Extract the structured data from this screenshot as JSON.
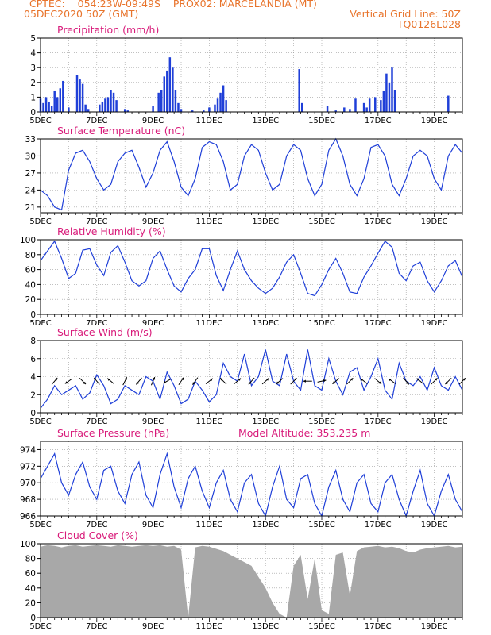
{
  "header": {
    "line1_left": "CPTEC:    054:23W-09:49S    PROX02: MARCELANDIA (MT)",
    "line2_left": "05DEC2020 50Z (GMT)",
    "line2_right": "Vertical Grid Line: 50Z",
    "line3_right": "TQ0126L028"
  },
  "colors": {
    "header": "#e8742c",
    "panel_title": "#d81b7a",
    "line": "#1f3fd8",
    "bar": "#1f3fd8",
    "cloud": "#a8a8a8",
    "grid": "#9a9a9a"
  },
  "x_tick_labels": [
    "5DEC",
    "7DEC",
    "9DEC",
    "11DEC",
    "13DEC",
    "15DEC",
    "17DEC",
    "19DEC"
  ],
  "x_axis": {
    "day_min": 5,
    "day_max": 20,
    "minor_ticks_per_day": 4
  },
  "chart_data": [
    {
      "type": "bar",
      "title": "Precipitation (mm/h)",
      "ylim": [
        0,
        5
      ],
      "yticks": [
        "0",
        "1",
        "2",
        "3",
        "4",
        "5"
      ],
      "x": [
        5.0,
        5.1,
        5.2,
        5.3,
        5.4,
        5.5,
        5.6,
        5.7,
        5.8,
        6.0,
        6.3,
        6.4,
        6.5,
        6.6,
        6.7,
        7.1,
        7.2,
        7.3,
        7.4,
        7.5,
        7.6,
        7.7,
        8.0,
        8.1,
        9.0,
        9.2,
        9.3,
        9.4,
        9.5,
        9.6,
        9.7,
        9.8,
        9.9,
        10.0,
        10.4,
        10.8,
        11.0,
        11.2,
        11.3,
        11.4,
        11.5,
        11.6,
        14.2,
        14.3,
        15.2,
        15.5,
        15.8,
        16.0,
        16.2,
        16.5,
        16.6,
        16.7,
        16.9,
        17.1,
        17.2,
        17.3,
        17.4,
        17.5,
        17.6,
        19.5
      ],
      "values": [
        0.9,
        0.6,
        1.0,
        0.7,
        0.4,
        1.4,
        1.0,
        1.6,
        2.1,
        0.3,
        2.5,
        2.2,
        1.9,
        0.5,
        0.2,
        0.5,
        0.7,
        0.9,
        1.0,
        1.5,
        1.3,
        0.8,
        0.2,
        0.1,
        0.4,
        1.3,
        1.5,
        2.4,
        2.8,
        3.7,
        3.0,
        1.5,
        0.6,
        0.2,
        0.1,
        0.1,
        0.3,
        0.5,
        0.9,
        1.3,
        1.8,
        0.8,
        2.9,
        0.6,
        0.4,
        0.1,
        0.3,
        0.2,
        0.9,
        0.6,
        0.3,
        0.9,
        1.0,
        0.8,
        1.4,
        2.6,
        2.0,
        3.0,
        1.5,
        1.1
      ]
    },
    {
      "type": "line",
      "title": "Surface Temperature (nC)",
      "ylim": [
        20,
        33
      ],
      "yticks": [
        "21",
        "24",
        "27",
        "30",
        "33"
      ],
      "x": [
        5.0,
        5.25,
        5.5,
        5.75,
        6.0,
        6.25,
        6.5,
        6.75,
        7.0,
        7.25,
        7.5,
        7.75,
        8.0,
        8.25,
        8.5,
        8.75,
        9.0,
        9.25,
        9.5,
        9.75,
        10.0,
        10.25,
        10.5,
        10.75,
        11.0,
        11.25,
        11.5,
        11.75,
        12.0,
        12.25,
        12.5,
        12.75,
        13.0,
        13.25,
        13.5,
        13.75,
        14.0,
        14.25,
        14.5,
        14.75,
        15.0,
        15.25,
        15.5,
        15.75,
        16.0,
        16.25,
        16.5,
        16.75,
        17.0,
        17.25,
        17.5,
        17.75,
        18.0,
        18.25,
        18.5,
        18.75,
        19.0,
        19.25,
        19.5,
        19.75,
        20.0
      ],
      "values": [
        24,
        23,
        21,
        20.5,
        27.5,
        30.5,
        31,
        29,
        26,
        24,
        25,
        29,
        30.5,
        31,
        28,
        24.5,
        27,
        31,
        32.5,
        29,
        24.5,
        23,
        26,
        31.5,
        32.5,
        32,
        29,
        24,
        25,
        30,
        32,
        31,
        27,
        24,
        25,
        30,
        32,
        31,
        26,
        23,
        25,
        31,
        33,
        30,
        25,
        23,
        26,
        31.5,
        32,
        30,
        25,
        23,
        26,
        30,
        31,
        30,
        26,
        24,
        30,
        32,
        30.5
      ]
    },
    {
      "type": "line",
      "title": "Relative Humidity (%)",
      "ylim": [
        0,
        100
      ],
      "yticks": [
        "0",
        "20",
        "40",
        "60",
        "80",
        "100"
      ],
      "x": [
        5.0,
        5.25,
        5.5,
        5.75,
        6.0,
        6.25,
        6.5,
        6.75,
        7.0,
        7.25,
        7.5,
        7.75,
        8.0,
        8.25,
        8.5,
        8.75,
        9.0,
        9.25,
        9.5,
        9.75,
        10.0,
        10.25,
        10.5,
        10.75,
        11.0,
        11.25,
        11.5,
        11.75,
        12.0,
        12.25,
        12.5,
        12.75,
        13.0,
        13.25,
        13.5,
        13.75,
        14.0,
        14.25,
        14.5,
        14.75,
        15.0,
        15.25,
        15.5,
        15.75,
        16.0,
        16.25,
        16.5,
        16.75,
        17.0,
        17.25,
        17.5,
        17.75,
        18.0,
        18.25,
        18.5,
        18.75,
        19.0,
        19.25,
        19.5,
        19.75,
        20.0
      ],
      "values": [
        72,
        85,
        98,
        75,
        48,
        55,
        86,
        88,
        66,
        52,
        83,
        92,
        70,
        45,
        38,
        45,
        75,
        85,
        60,
        38,
        30,
        48,
        60,
        88,
        88,
        52,
        32,
        60,
        85,
        60,
        45,
        35,
        28,
        35,
        50,
        70,
        80,
        55,
        28,
        25,
        40,
        60,
        75,
        55,
        30,
        28,
        50,
        65,
        82,
        98,
        90,
        55,
        45,
        65,
        70,
        45,
        30,
        45,
        65,
        72,
        50
      ]
    },
    {
      "type": "line",
      "title": "Surface Wind (m/s)",
      "ylim": [
        0,
        8
      ],
      "yticks": [
        "0",
        "2",
        "4",
        "6",
        "8"
      ],
      "x": [
        5.0,
        5.25,
        5.5,
        5.75,
        6.0,
        6.25,
        6.5,
        6.75,
        7.0,
        7.25,
        7.5,
        7.75,
        8.0,
        8.25,
        8.5,
        8.75,
        9.0,
        9.25,
        9.5,
        9.75,
        10.0,
        10.25,
        10.5,
        10.75,
        11.0,
        11.25,
        11.5,
        11.75,
        12.0,
        12.25,
        12.5,
        12.75,
        13.0,
        13.25,
        13.5,
        13.75,
        14.0,
        14.25,
        14.5,
        14.75,
        15.0,
        15.25,
        15.5,
        15.75,
        16.0,
        16.25,
        16.5,
        16.75,
        17.0,
        17.25,
        17.5,
        17.75,
        18.0,
        18.25,
        18.5,
        18.75,
        19.0,
        19.25,
        19.5,
        19.75,
        20.0
      ],
      "values": [
        0.5,
        1.5,
        3.0,
        2.0,
        2.5,
        3.0,
        1.5,
        2.2,
        4.2,
        3.0,
        1.0,
        1.5,
        3.0,
        2.5,
        2.0,
        4.0,
        3.5,
        1.5,
        4.5,
        3.0,
        1.0,
        1.5,
        3.5,
        2.5,
        1.2,
        2.0,
        5.5,
        4.0,
        3.5,
        6.5,
        3.0,
        4.0,
        7.0,
        3.5,
        3.0,
        6.5,
        3.5,
        2.5,
        7.0,
        3.0,
        2.5,
        6.0,
        3.5,
        2.0,
        4.5,
        5.0,
        2.5,
        4.0,
        6.0,
        2.5,
        1.5,
        5.5,
        3.5,
        3.0,
        4.0,
        2.5,
        5.0,
        3.0,
        2.5,
        4.0,
        2.5
      ],
      "vectors": {
        "x": [
          5.5,
          6.0,
          6.5,
          7.0,
          7.5,
          8.0,
          8.5,
          9.0,
          9.5,
          10.0,
          10.5,
          11.0,
          11.5,
          12.0,
          12.5,
          13.0,
          13.5,
          14.0,
          14.5,
          15.0,
          15.5,
          16.0,
          16.5,
          17.0,
          17.5,
          18.0,
          18.5,
          19.0,
          19.5,
          20.0
        ],
        "y": [
          3.5,
          3.5,
          3.5,
          3.5,
          3.5,
          3.5,
          3.5,
          3.5,
          3.5,
          3.5,
          3.5,
          3.5,
          3.5,
          3.5,
          3.5,
          3.5,
          3.5,
          3.5,
          3.5,
          3.5,
          3.5,
          3.5,
          3.5,
          3.5,
          3.5,
          3.5,
          3.5,
          3.5,
          3.5,
          3.5
        ],
        "u": [
          0.5,
          -0.7,
          0.6,
          -0.5,
          -0.6,
          0.3,
          -0.5,
          0.3,
          -0.7,
          0.4,
          -0.5,
          0.5,
          -0.6,
          0.6,
          -0.7,
          1.0,
          -0.8,
          0.8,
          -0.9,
          0.9,
          -0.7,
          0.6,
          -0.5,
          0.7,
          -0.8,
          0.6,
          -0.7,
          0.8,
          -0.6,
          0.5
        ],
        "v": [
          0.6,
          -0.5,
          -0.6,
          0.6,
          0.5,
          0.6,
          -0.6,
          0.7,
          -0.4,
          0.6,
          -0.7,
          0.4,
          0.6,
          0.5,
          -0.8,
          0.9,
          -0.7,
          0.8,
          0.0,
          0.2,
          -0.6,
          0.6,
          0.4,
          -0.6,
          0.6,
          -0.7,
          0.6,
          0.8,
          -0.6,
          0.5
        ]
      }
    },
    {
      "type": "line",
      "title": "Surface Pressure (hPa)",
      "annotation": "Model Altitude: 353.235 m",
      "ylim": [
        966,
        975
      ],
      "yticks": [
        "966",
        "968",
        "970",
        "972",
        "974"
      ],
      "x": [
        5.0,
        5.25,
        5.5,
        5.75,
        6.0,
        6.25,
        6.5,
        6.75,
        7.0,
        7.25,
        7.5,
        7.75,
        8.0,
        8.25,
        8.5,
        8.75,
        9.0,
        9.25,
        9.5,
        9.75,
        10.0,
        10.25,
        10.5,
        10.75,
        11.0,
        11.25,
        11.5,
        11.75,
        12.0,
        12.25,
        12.5,
        12.75,
        13.0,
        13.25,
        13.5,
        13.75,
        14.0,
        14.25,
        14.5,
        14.75,
        15.0,
        15.25,
        15.5,
        15.75,
        16.0,
        16.25,
        16.5,
        16.75,
        17.0,
        17.25,
        17.5,
        17.75,
        18.0,
        18.25,
        18.5,
        18.75,
        19.0,
        19.25,
        19.5,
        19.75,
        20.0
      ],
      "values": [
        970.5,
        972,
        973.5,
        970,
        968.5,
        971,
        972.5,
        969.5,
        968,
        971.5,
        972,
        969,
        967.5,
        971,
        972.5,
        968.5,
        967,
        971,
        973.5,
        969.5,
        967,
        970.5,
        972,
        969,
        967,
        970,
        971.5,
        968,
        966.5,
        970,
        971,
        967.5,
        966,
        969.5,
        972,
        968,
        967,
        970.5,
        971,
        967.5,
        966,
        969.5,
        971.5,
        968,
        966.5,
        970,
        971,
        967.5,
        966.5,
        970,
        971,
        968,
        966,
        969,
        971.5,
        967.5,
        966,
        969,
        971,
        968,
        966.5
      ]
    },
    {
      "type": "area",
      "title": "Cloud Cover (%)",
      "ylim": [
        0,
        100
      ],
      "yticks": [
        "0",
        "20",
        "40",
        "60",
        "80",
        "100"
      ],
      "x": [
        5.0,
        5.25,
        5.5,
        5.75,
        6.0,
        6.25,
        6.5,
        6.75,
        7.0,
        7.25,
        7.5,
        7.75,
        8.0,
        8.25,
        8.5,
        8.75,
        9.0,
        9.25,
        9.5,
        9.75,
        10.0,
        10.25,
        10.5,
        10.75,
        11.0,
        11.25,
        11.5,
        11.75,
        12.0,
        12.25,
        12.5,
        12.75,
        13.0,
        13.25,
        13.5,
        13.75,
        14.0,
        14.25,
        14.5,
        14.75,
        15.0,
        15.25,
        15.5,
        15.75,
        16.0,
        16.25,
        16.5,
        16.75,
        17.0,
        17.25,
        17.5,
        17.75,
        18.0,
        18.25,
        18.5,
        18.75,
        19.0,
        19.25,
        19.5,
        19.75,
        20.0
      ],
      "values": [
        96,
        98,
        97,
        95,
        97,
        98,
        96,
        97,
        98,
        97,
        96,
        98,
        97,
        96,
        97,
        98,
        97,
        98,
        96,
        97,
        92,
        0,
        95,
        97,
        96,
        93,
        90,
        85,
        80,
        75,
        70,
        55,
        40,
        20,
        5,
        0,
        70,
        85,
        25,
        80,
        10,
        5,
        85,
        88,
        30,
        90,
        95,
        96,
        97,
        95,
        96,
        94,
        90,
        88,
        92,
        94,
        95,
        96,
        97,
        95,
        96
      ]
    }
  ]
}
